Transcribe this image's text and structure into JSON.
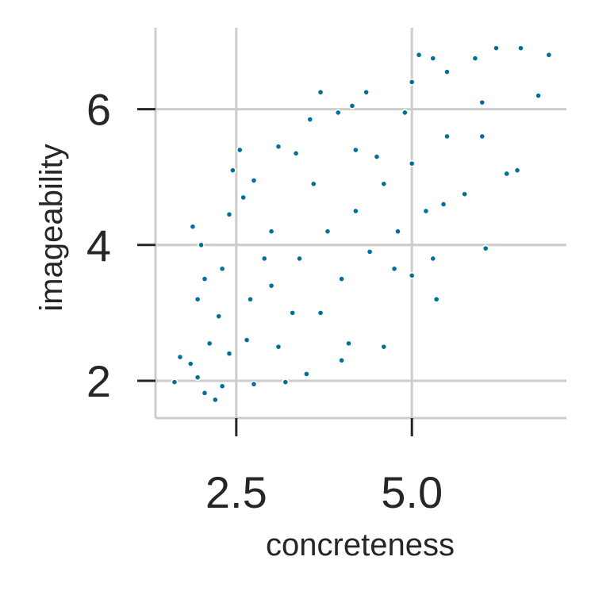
{
  "chart_data": {
    "type": "scatter",
    "title": "",
    "xlabel": "concreteness",
    "ylabel": "imageability",
    "xlim": [
      1.35,
      7.2
    ],
    "ylim": [
      1.45,
      7.2
    ],
    "xticks": [
      2.5,
      5.0
    ],
    "xtick_labels": [
      "2.5",
      "5.0"
    ],
    "yticks": [
      2,
      4,
      6
    ],
    "ytick_labels": [
      "2",
      "4",
      "6"
    ],
    "grid": true,
    "legend": "none",
    "point_color": "#006f9a",
    "point_edge_color": "#ffffff",
    "series": [
      {
        "points_sample": [
          [
            1.62,
            1.98
          ],
          [
            1.7,
            2.35
          ],
          [
            1.85,
            2.25
          ],
          [
            1.95,
            2.05
          ],
          [
            2.05,
            1.82
          ],
          [
            2.2,
            1.72
          ],
          [
            2.3,
            1.92
          ],
          [
            2.12,
            2.55
          ],
          [
            2.25,
            2.95
          ],
          [
            1.95,
            3.2
          ],
          [
            2.05,
            3.5
          ],
          [
            2.0,
            4.0
          ],
          [
            1.88,
            4.27
          ],
          [
            2.3,
            3.65
          ],
          [
            2.4,
            4.45
          ],
          [
            2.45,
            5.1
          ],
          [
            2.55,
            5.4
          ],
          [
            2.6,
            4.7
          ],
          [
            2.75,
            4.95
          ],
          [
            3.1,
            5.45
          ],
          [
            3.35,
            5.35
          ],
          [
            3.55,
            5.85
          ],
          [
            3.7,
            6.25
          ],
          [
            3.95,
            5.95
          ],
          [
            4.15,
            6.05
          ],
          [
            4.35,
            6.25
          ],
          [
            4.5,
            5.3
          ],
          [
            4.9,
            5.95
          ],
          [
            5.0,
            6.4
          ],
          [
            5.1,
            6.8
          ],
          [
            5.3,
            6.75
          ],
          [
            5.5,
            6.55
          ],
          [
            5.9,
            6.75
          ],
          [
            6.2,
            6.9
          ],
          [
            6.55,
            6.9
          ],
          [
            6.95,
            6.8
          ],
          [
            6.5,
            5.1
          ],
          [
            6.35,
            5.05
          ],
          [
            6.8,
            6.2
          ],
          [
            6.0,
            5.6
          ],
          [
            5.75,
            4.75
          ],
          [
            5.45,
            4.6
          ],
          [
            6.05,
            3.95
          ],
          [
            5.3,
            3.8
          ],
          [
            5.35,
            3.2
          ],
          [
            4.75,
            3.65
          ],
          [
            5.0,
            3.55
          ],
          [
            4.6,
            2.5
          ],
          [
            4.1,
            2.55
          ],
          [
            4.0,
            2.3
          ],
          [
            3.5,
            2.1
          ],
          [
            3.2,
            1.98
          ],
          [
            2.75,
            1.95
          ],
          [
            2.65,
            2.6
          ],
          [
            3.0,
            3.4
          ],
          [
            3.4,
            3.8
          ],
          [
            3.8,
            4.2
          ],
          [
            4.2,
            4.5
          ],
          [
            4.6,
            4.9
          ],
          [
            5.0,
            5.2
          ],
          [
            5.5,
            5.6
          ],
          [
            6.0,
            6.1
          ],
          [
            3.0,
            4.2
          ],
          [
            3.6,
            4.9
          ],
          [
            4.2,
            5.4
          ],
          [
            3.3,
            3.0
          ],
          [
            4.0,
            3.5
          ],
          [
            4.4,
            3.9
          ],
          [
            5.2,
            4.5
          ],
          [
            2.7,
            3.2
          ],
          [
            3.1,
            2.5
          ],
          [
            3.7,
            3.0
          ],
          [
            2.4,
            2.4
          ],
          [
            2.9,
            3.8
          ],
          [
            4.8,
            4.2
          ]
        ]
      }
    ]
  }
}
